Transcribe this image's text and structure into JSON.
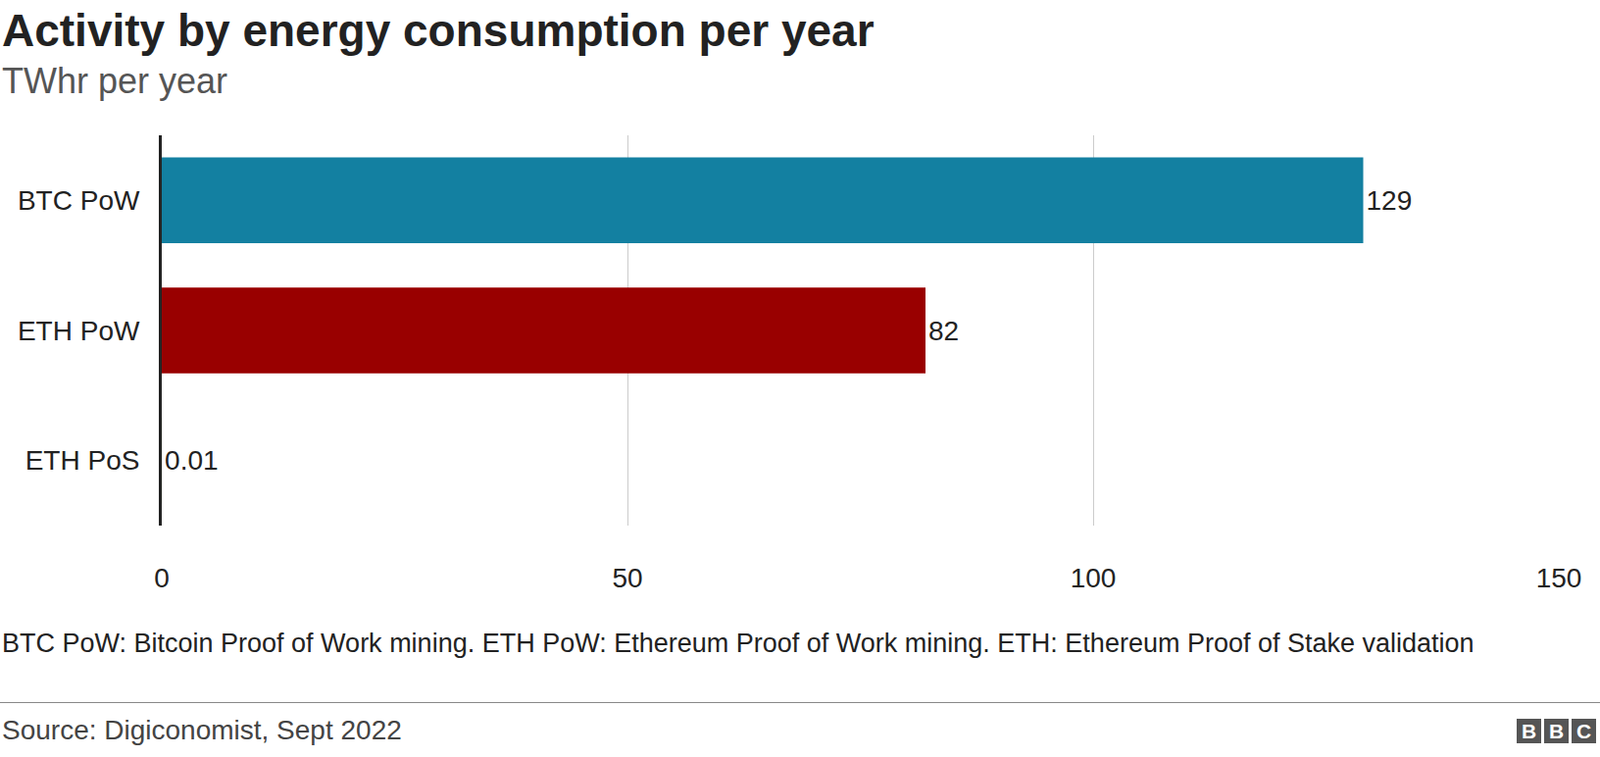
{
  "chart_data": {
    "type": "bar",
    "orientation": "horizontal",
    "title": "Activity by energy consumption per year",
    "subtitle": "TWhr per year",
    "categories": [
      "BTC PoW",
      "ETH PoW",
      "ETH PoS"
    ],
    "values": [
      129,
      82,
      0.01
    ],
    "colors": [
      "#1380a1",
      "#990000",
      "#588300"
    ],
    "xlim": [
      0,
      150
    ],
    "xticks": [
      0,
      50,
      100,
      150
    ],
    "grid": true,
    "data_labels": true,
    "notes": "BTC PoW: Bitcoin Proof of Work mining. ETH PoW: Ethereum Proof of Work mining. ETH: Ethereum Proof of Stake validation",
    "source": "Source: Digiconomist, Sept 2022",
    "logo": "BBC"
  }
}
